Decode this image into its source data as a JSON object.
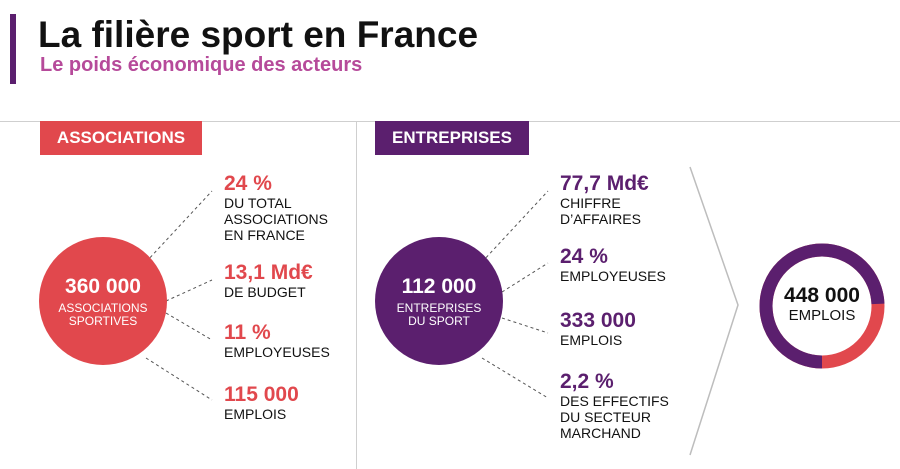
{
  "header": {
    "title": "La filière sport en France",
    "subtitle": "Le poids économique des acteurs"
  },
  "associations": {
    "badge": "ASSOCIATIONS",
    "circle_value": "360 000",
    "circle_label": "ASSOCIATIONS SPORTIVES",
    "stats": [
      {
        "value": "24 %",
        "label": "DU TOTAL ASSOCIATIONS EN FRANCE"
      },
      {
        "value": "13,1 Md€",
        "label": "DE BUDGET"
      },
      {
        "value": "11 %",
        "label": "EMPLOYEUSES"
      },
      {
        "value": "115 000",
        "label": "EMPLOIS"
      }
    ]
  },
  "entreprises": {
    "badge": "ENTREPRISES",
    "circle_value": "112 000",
    "circle_label": "ENTREPRISES DU SPORT",
    "stats": [
      {
        "value": "77,7 Md€",
        "label": "CHIFFRE D’AFFAIRES"
      },
      {
        "value": "24 %",
        "label": "EMPLOYEUSES"
      },
      {
        "value": "333 000",
        "label": "EMPLOIS"
      },
      {
        "value": "2,2 %",
        "label": "DES EFFECTIFS DU SECTEUR MARCHAND"
      }
    ]
  },
  "total": {
    "value": "448 000",
    "label": "EMPLOIS",
    "purple_fraction": 0.743
  },
  "colors": {
    "red": "#e1484d",
    "purple": "#5b1f6e",
    "pink": "#b64a9a"
  }
}
